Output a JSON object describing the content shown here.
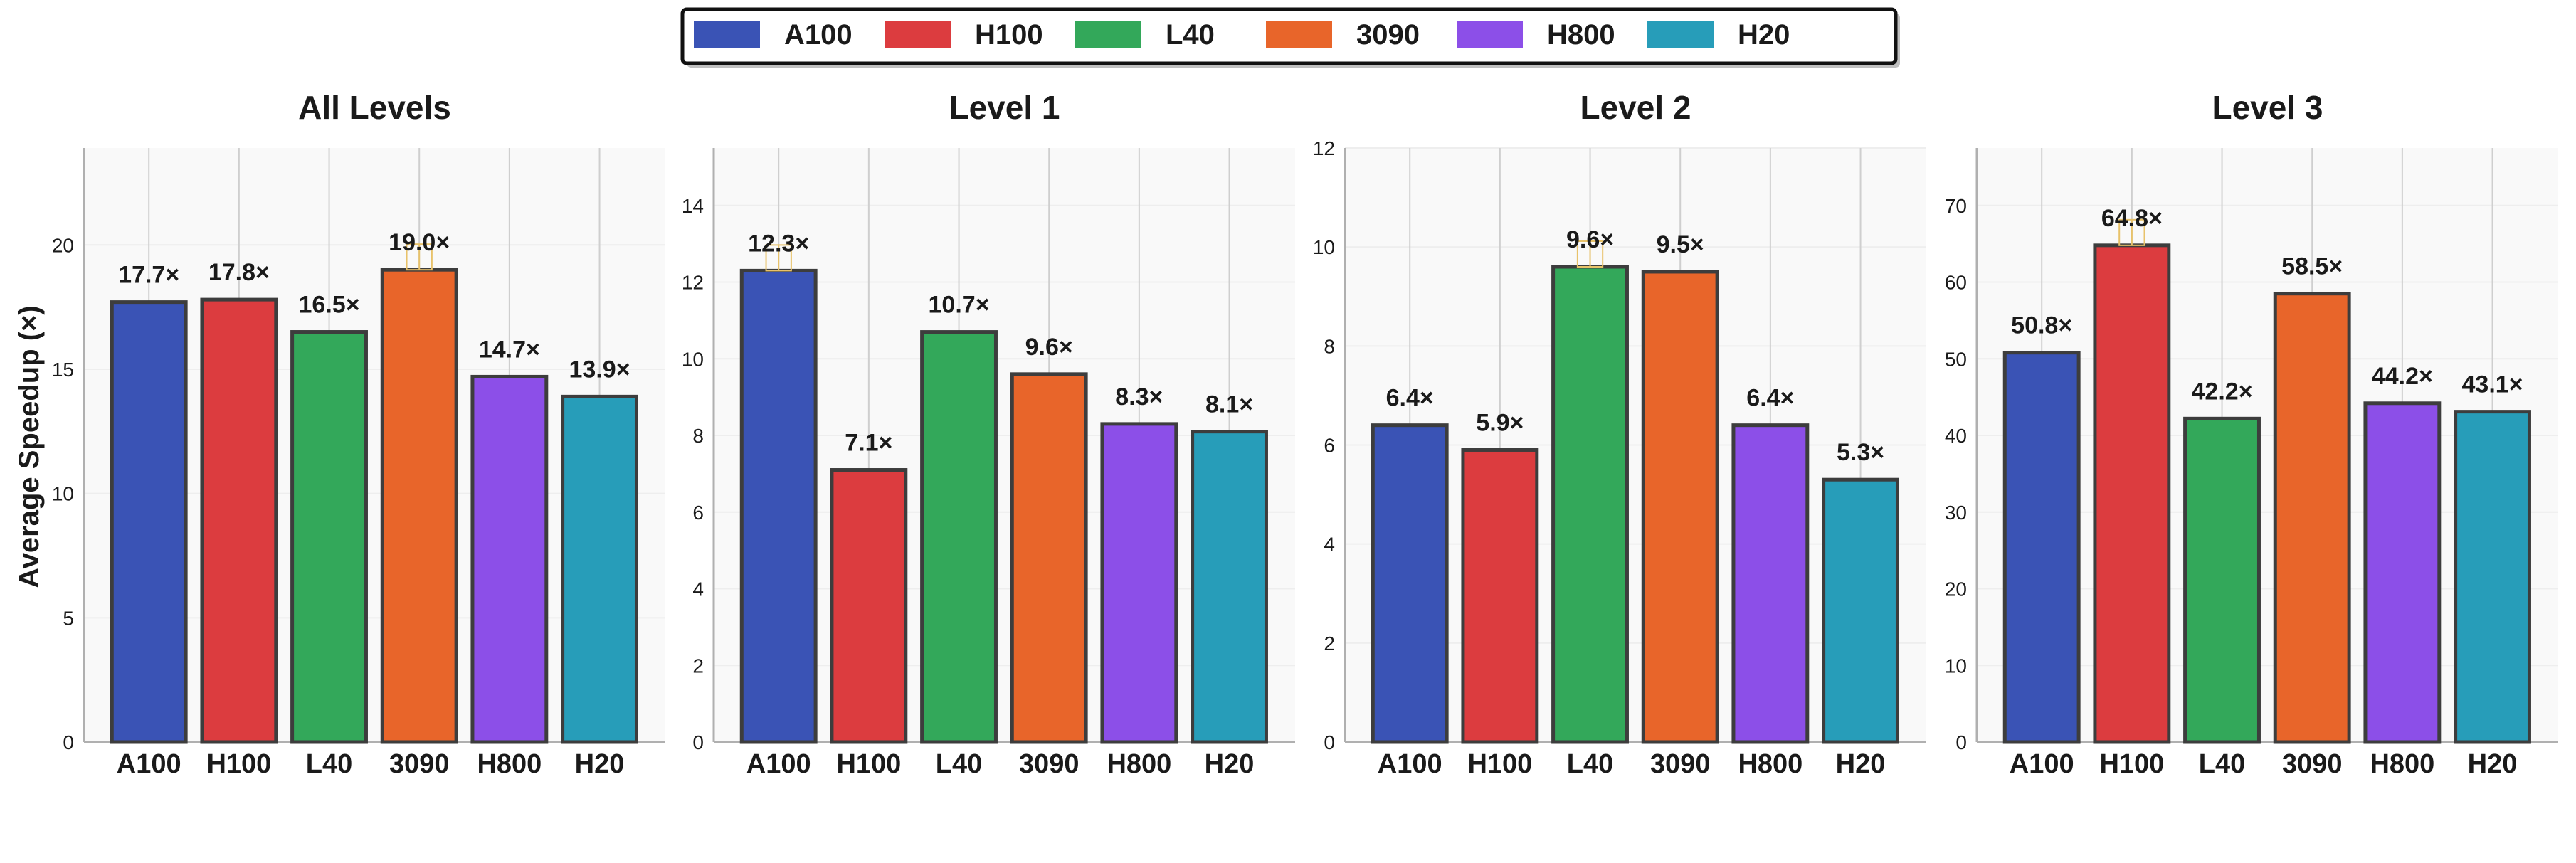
{
  "chart_data": {
    "type": "bar",
    "ylabel": "Average Speedup (×)",
    "legend_position": "top-center",
    "legend": [
      {
        "name": "A100",
        "color": "#3a53b5"
      },
      {
        "name": "H100",
        "color": "#dc3c3f"
      },
      {
        "name": "L40",
        "color": "#33a85a"
      },
      {
        "name": "3090",
        "color": "#e8652a"
      },
      {
        "name": "H800",
        "color": "#8c4fe8"
      },
      {
        "name": "H20",
        "color": "#279db9"
      }
    ],
    "panels": [
      {
        "title": "All Levels",
        "categories": [
          "A100",
          "H100",
          "L40",
          "3090",
          "H800",
          "H20"
        ],
        "values": [
          17.7,
          17.8,
          16.5,
          19.0,
          14.7,
          13.9
        ],
        "labels": [
          "17.7×",
          "17.8×",
          "16.5×",
          "19.0×",
          "14.7×",
          "13.9×"
        ],
        "highlight_index": 3,
        "ylim": [
          0,
          23.9
        ],
        "yticks": [
          0,
          5,
          10,
          15,
          20
        ],
        "ytick_labels": [
          "0",
          "5",
          "10",
          "15",
          "20"
        ]
      },
      {
        "title": "Level 1",
        "categories": [
          "A100",
          "H100",
          "L40",
          "3090",
          "H800",
          "H20"
        ],
        "values": [
          12.3,
          7.1,
          10.7,
          9.6,
          8.3,
          8.1
        ],
        "labels": [
          "12.3×",
          "7.1×",
          "10.7×",
          "9.6×",
          "8.3×",
          "8.1×"
        ],
        "highlight_index": 0,
        "ylim": [
          0,
          15.5
        ],
        "yticks": [
          0,
          2,
          4,
          6,
          8,
          10,
          12,
          14
        ],
        "ytick_labels": [
          "0",
          "2",
          "4",
          "6",
          "8",
          "10",
          "12",
          "14"
        ]
      },
      {
        "title": "Level 2",
        "categories": [
          "A100",
          "H100",
          "L40",
          "3090",
          "H800",
          "H20"
        ],
        "values": [
          6.4,
          5.9,
          9.6,
          9.5,
          6.4,
          5.3
        ],
        "labels": [
          "6.4×",
          "5.9×",
          "9.6×",
          "9.5×",
          "6.4×",
          "5.3×"
        ],
        "highlight_index": 2,
        "ylim": [
          0,
          12
        ],
        "yticks": [
          0,
          2,
          4,
          6,
          8,
          10,
          12
        ],
        "ytick_labels": [
          "0",
          "2",
          "4",
          "6",
          "8",
          "10",
          "12"
        ]
      },
      {
        "title": "Level 3",
        "categories": [
          "A100",
          "H100",
          "L40",
          "3090",
          "H800",
          "H20"
        ],
        "values": [
          50.8,
          64.8,
          42.2,
          58.5,
          44.2,
          43.1
        ],
        "labels": [
          "50.8×",
          "64.8×",
          "42.2×",
          "58.5×",
          "44.2×",
          "43.1×"
        ],
        "highlight_index": 1,
        "ylim": [
          0,
          77.5
        ],
        "yticks": [
          0,
          10,
          20,
          30,
          40,
          50,
          60,
          70
        ],
        "ytick_labels": [
          "0",
          "10",
          "20",
          "30",
          "40",
          "50",
          "60",
          "70"
        ]
      }
    ]
  }
}
